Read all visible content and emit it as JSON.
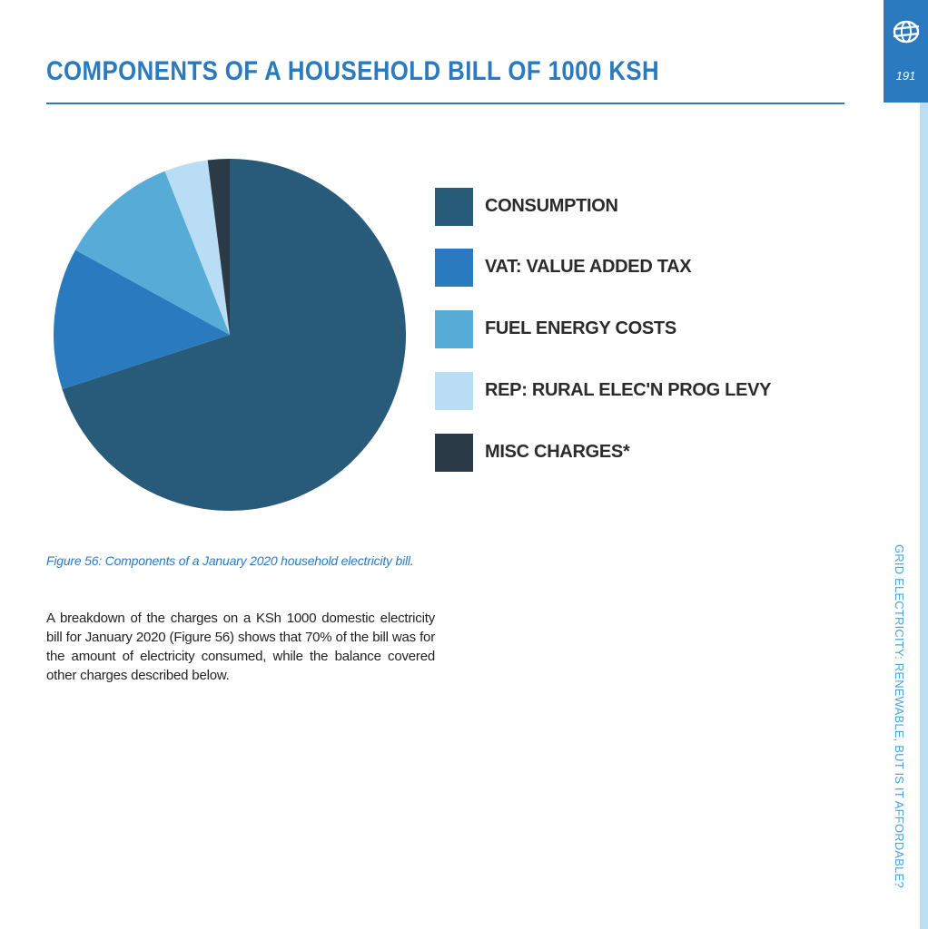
{
  "header": {
    "title": "COMPONENTS OF A HOUSEHOLD BILL OF 1000 KSH",
    "page_number": "191",
    "running_head": "GRID ELECTRICITY: RENEWABLE, BUT IS IT AFFORDABLE?",
    "logo_icon": "globe-icon"
  },
  "colors": {
    "accent": "#2a7abf",
    "rail": "#bcdff5"
  },
  "chart_data": {
    "type": "pie",
    "title": "",
    "categories": [
      "CONSUMPTION",
      "VAT: VALUE ADDED TAX",
      "FUEL ENERGY COSTS",
      "REP: RURAL ELEC'N PROG LEVY",
      "MISC CHARGES*"
    ],
    "values": [
      70,
      13,
      11,
      4,
      2
    ],
    "colors": [
      "#285a7a",
      "#2a7abf",
      "#56acd6",
      "#b9ddf5",
      "#2b3a47"
    ],
    "start_angle": "12 o'clock",
    "direction": "clockwise",
    "legend_position": "right"
  },
  "caption": "Figure 56: Components of a January 2020 household electricity bill.",
  "body_text": "A breakdown of the charges on a KSh 1000 domestic electricity bill for January 2020 (Figure 56) shows that 70% of the bill was for the amount of electricity consumed, while the balance covered other charges described below."
}
